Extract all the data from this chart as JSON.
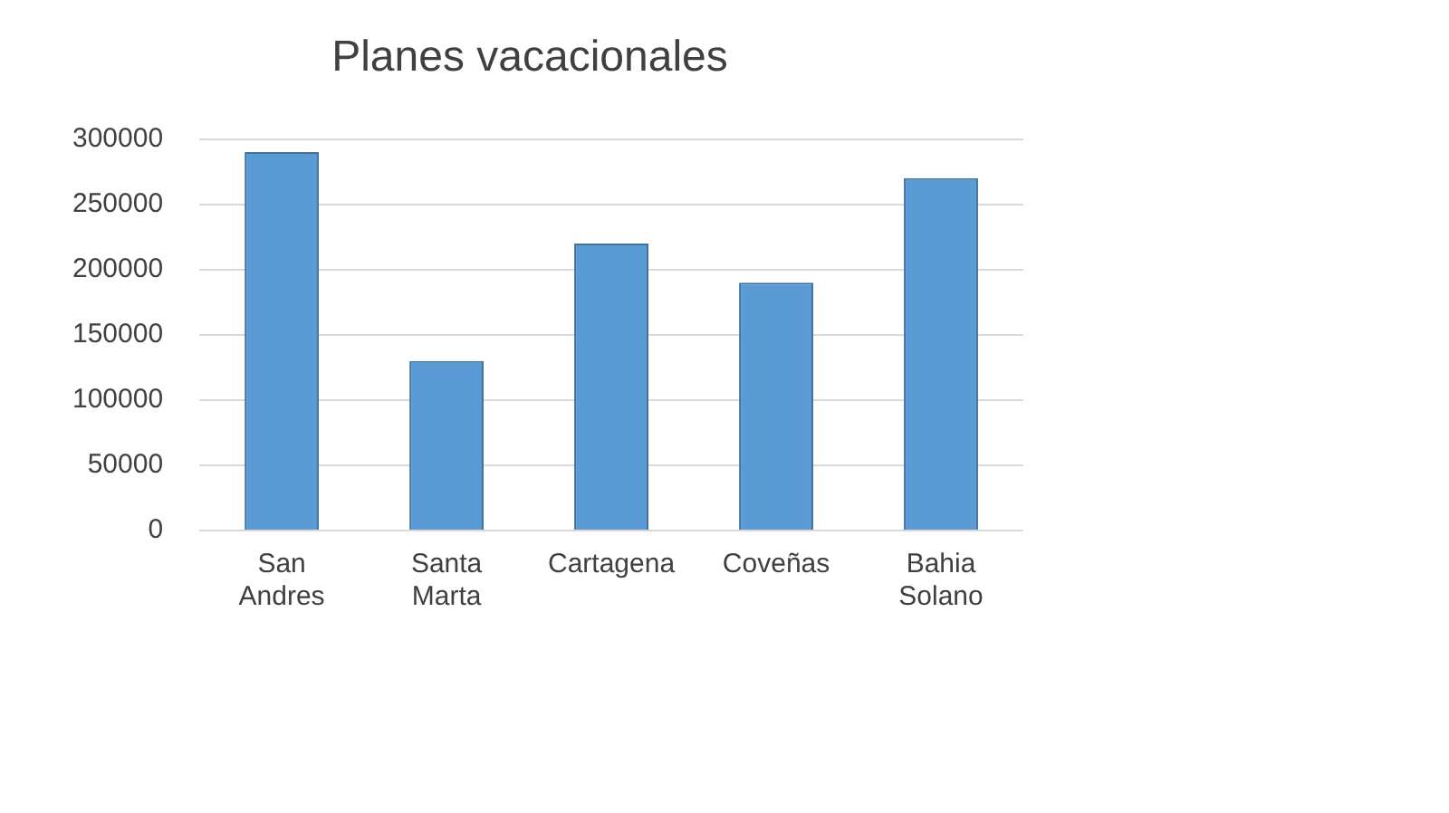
{
  "chart_data": {
    "type": "bar",
    "title": "Planes vacacionales",
    "categories": [
      "San Andres",
      "Santa Marta",
      "Cartagena",
      "Coveñas",
      "Bahia Solano"
    ],
    "values": [
      290000,
      130000,
      220000,
      190000,
      270000
    ],
    "color": "#5b9bd5",
    "ylim": [
      0,
      300000
    ],
    "yticks": [
      0,
      50000,
      100000,
      150000,
      200000,
      250000,
      300000
    ],
    "grid": "y"
  }
}
